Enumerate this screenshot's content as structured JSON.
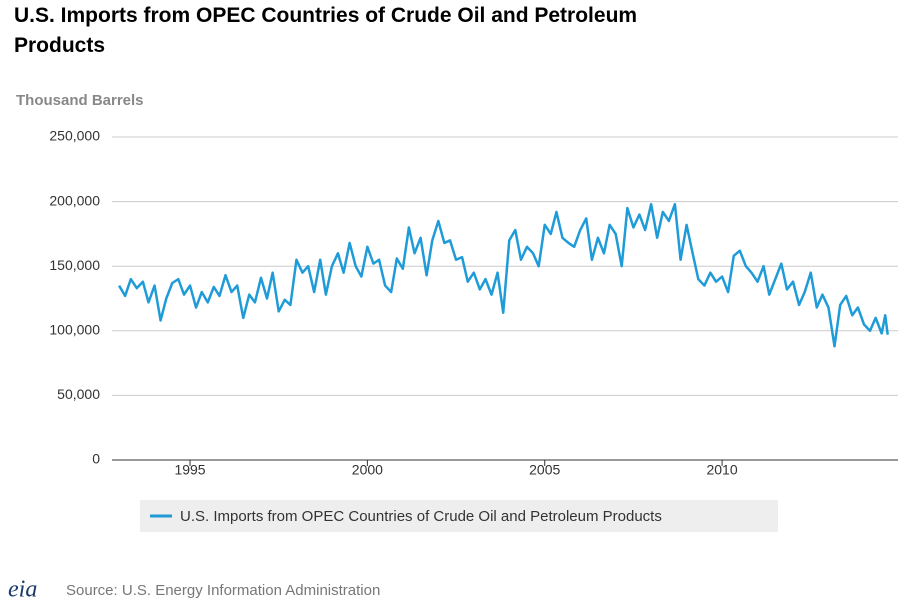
{
  "chart_data": {
    "type": "line",
    "title": "U.S. Imports from OPEC Countries of Crude Oil and Petroleum Products",
    "y_label": "Thousand Barrels",
    "source": "Source: U.S. Energy Information Administration",
    "logo": "eia",
    "xlim": [
      1992.8,
      2014.96
    ],
    "xticks": [
      1995,
      2000,
      2005,
      2010
    ],
    "ylim": [
      0,
      250000
    ],
    "yticks": [
      0,
      {
        "value": 50000,
        "label": "50,000"
      },
      {
        "value": 100000,
        "label": "100,000"
      },
      {
        "value": 150000,
        "label": "150,000"
      },
      {
        "value": 200000,
        "label": "200,000"
      },
      {
        "value": 250000,
        "label": "250,000"
      }
    ],
    "grid": true,
    "x": [
      1993,
      1993.17,
      1993.33,
      1993.5,
      1993.67,
      1993.83,
      1994,
      1994.17,
      1994.33,
      1994.5,
      1994.67,
      1994.83,
      1995,
      1995.17,
      1995.33,
      1995.5,
      1995.67,
      1995.83,
      1996,
      1996.17,
      1996.33,
      1996.5,
      1996.67,
      1996.83,
      1997,
      1997.17,
      1997.33,
      1997.5,
      1997.67,
      1997.83,
      1998,
      1998.17,
      1998.33,
      1998.5,
      1998.67,
      1998.83,
      1999,
      1999.17,
      1999.33,
      1999.5,
      1999.67,
      1999.83,
      2000,
      2000.17,
      2000.33,
      2000.5,
      2000.67,
      2000.83,
      2001,
      2001.17,
      2001.33,
      2001.5,
      2001.67,
      2001.83,
      2002,
      2002.17,
      2002.33,
      2002.5,
      2002.67,
      2002.83,
      2003,
      2003.17,
      2003.33,
      2003.5,
      2003.67,
      2003.83,
      2004,
      2004.17,
      2004.33,
      2004.5,
      2004.67,
      2004.83,
      2005,
      2005.17,
      2005.33,
      2005.5,
      2005.67,
      2005.83,
      2006,
      2006.17,
      2006.33,
      2006.5,
      2006.67,
      2006.83,
      2007,
      2007.17,
      2007.33,
      2007.5,
      2007.67,
      2007.83,
      2008,
      2008.17,
      2008.33,
      2008.5,
      2008.67,
      2008.83,
      2009,
      2009.17,
      2009.33,
      2009.5,
      2009.67,
      2009.83,
      2010,
      2010.17,
      2010.33,
      2010.5,
      2010.67,
      2010.83,
      2011,
      2011.17,
      2011.33,
      2011.5,
      2011.67,
      2011.83,
      2012,
      2012.17,
      2012.33,
      2012.5,
      2012.67,
      2012.83,
      2013,
      2013.17,
      2013.33,
      2013.5,
      2013.67,
      2013.83,
      2014,
      2014.17,
      2014.33,
      2014.5,
      2014.6,
      2014.67
    ],
    "series": [
      {
        "name": "U.S. Imports from OPEC Countries of Crude Oil and Petroleum Products",
        "color": "#1f9bd7",
        "values": [
          135000,
          127000,
          140000,
          133000,
          138000,
          122000,
          135000,
          108000,
          125000,
          137000,
          140000,
          128000,
          135000,
          118000,
          130000,
          122000,
          134000,
          127000,
          143000,
          130000,
          135000,
          110000,
          128000,
          122000,
          141000,
          125000,
          145000,
          115000,
          124000,
          120000,
          155000,
          145000,
          150000,
          130000,
          155000,
          128000,
          150000,
          160000,
          145000,
          168000,
          150000,
          142000,
          165000,
          152000,
          155000,
          135000,
          130000,
          156000,
          148000,
          180000,
          160000,
          172000,
          143000,
          170000,
          185000,
          168000,
          170000,
          155000,
          157000,
          138000,
          145000,
          132000,
          140000,
          128000,
          145000,
          114000,
          170000,
          178000,
          155000,
          165000,
          160000,
          150000,
          182000,
          175000,
          192000,
          172000,
          168000,
          165000,
          178000,
          187000,
          155000,
          172000,
          160000,
          182000,
          175000,
          150000,
          195000,
          180000,
          190000,
          178000,
          198000,
          172000,
          192000,
          185000,
          198000,
          155000,
          182000,
          160000,
          140000,
          135000,
          145000,
          138000,
          142000,
          130000,
          158000,
          162000,
          150000,
          145000,
          138000,
          150000,
          128000,
          140000,
          152000,
          132000,
          138000,
          120000,
          130000,
          145000,
          118000,
          128000,
          118000,
          88000,
          120000,
          127000,
          112000,
          118000,
          105000,
          100000,
          110000,
          98000,
          112000,
          97000
        ]
      }
    ]
  }
}
